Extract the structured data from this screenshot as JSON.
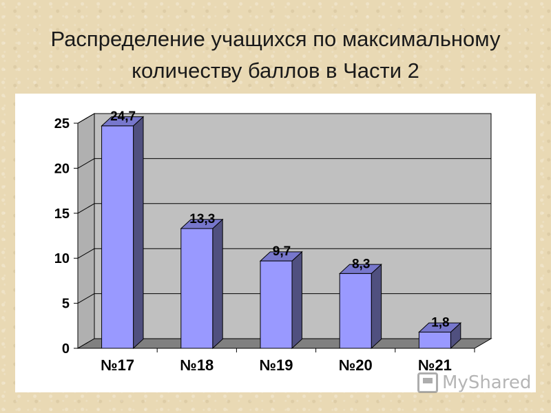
{
  "slide": {
    "title_line1": "Распределение учащихся по максимальному",
    "title_line2": "количеству баллов в Части 2"
  },
  "watermark": {
    "text": "MyShared",
    "icon": "projector-icon"
  },
  "colors": {
    "bar_front": "#9999ff",
    "bar_side": "#50507f",
    "bar_top": "#7777cc",
    "wall": "#c0c0c0",
    "floor": "#808080"
  },
  "chart_data": {
    "type": "bar",
    "title": "",
    "xlabel": "",
    "ylabel": "",
    "categories": [
      "№17",
      "№18",
      "№19",
      "№20",
      "№21"
    ],
    "values": [
      24.7,
      13.3,
      9.7,
      8.3,
      1.8
    ],
    "value_labels": [
      "24,7",
      "13,3",
      "9,7",
      "8,3",
      "1,8"
    ],
    "yticks": [
      "0",
      "5",
      "10",
      "15",
      "20",
      "25"
    ],
    "ytick_values": [
      0,
      5,
      10,
      15,
      20,
      25
    ],
    "ylim": [
      0,
      25
    ],
    "grid": true,
    "legend": "none",
    "style": "3d-column"
  }
}
